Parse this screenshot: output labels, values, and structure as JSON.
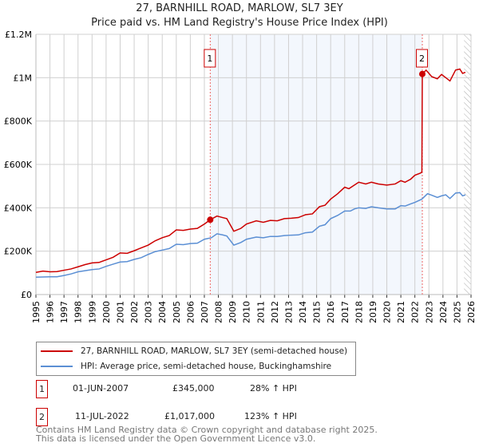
{
  "chart_data": {
    "type": "line",
    "title": "27, BARNHILL ROAD, MARLOW, SL7 3EY",
    "subtitle": "Price paid vs. HM Land Registry's House Price Index (HPI)",
    "xlim": [
      1995,
      2026
    ],
    "ylim": [
      0,
      1200000
    ],
    "yticks": [
      {
        "v": 0,
        "label": "£0"
      },
      {
        "v": 200000,
        "label": "£200K"
      },
      {
        "v": 400000,
        "label": "£400K"
      },
      {
        "v": 600000,
        "label": "£600K"
      },
      {
        "v": 800000,
        "label": "£800K"
      },
      {
        "v": 1000000,
        "label": "£1M"
      },
      {
        "v": 1200000,
        "label": "£1.2M"
      }
    ],
    "xticks": [
      "1995",
      "1996",
      "1997",
      "1998",
      "1999",
      "2000",
      "2001",
      "2002",
      "2003",
      "2004",
      "2005",
      "2006",
      "2007",
      "2008",
      "2009",
      "2010",
      "2011",
      "2012",
      "2013",
      "2014",
      "2015",
      "2016",
      "2017",
      "2018",
      "2019",
      "2020",
      "2021",
      "2022",
      "2023",
      "2024",
      "2025",
      "2026"
    ],
    "grid": true,
    "shaded_period": [
      2007.42,
      2022.53
    ],
    "hatched_after": 2025.5,
    "series": [
      {
        "name": "27, BARNHILL ROAD, MARLOW, SL7 3EY (semi-detached house)",
        "color": "#cc0000",
        "x": [
          1995,
          1995.5,
          1996,
          1996.5,
          1997,
          1997.5,
          1998,
          1998.5,
          1999,
          1999.5,
          2000,
          2000.5,
          2001,
          2001.5,
          2002,
          2002.5,
          2003,
          2003.5,
          2004,
          2004.5,
          2005,
          2005.5,
          2006,
          2006.5,
          2007,
          2007.42,
          2007.9,
          2008.3,
          2008.6,
          2009.1,
          2009.6,
          2010,
          2010.7,
          2011.2,
          2011.7,
          2012.2,
          2012.7,
          2013.2,
          2013.7,
          2014.2,
          2014.7,
          2015.2,
          2015.6,
          2016,
          2016.5,
          2017,
          2017.3,
          2017.7,
          2018,
          2018.5,
          2018.9,
          2019.4,
          2020,
          2020.6,
          2021,
          2021.3,
          2021.7,
          2022,
          2022.4,
          2022.5,
          2022.53,
          2022.8,
          2023.2,
          2023.6,
          2023.9,
          2024.2,
          2024.5,
          2024.9,
          2025.2,
          2025.4,
          2025.6
        ],
        "y": [
          102000,
          108000,
          105000,
          106000,
          112000,
          118000,
          128000,
          138000,
          146000,
          148000,
          160000,
          172000,
          192000,
          190000,
          202000,
          215000,
          228000,
          248000,
          262000,
          272000,
          298000,
          296000,
          302000,
          305000,
          325000,
          345000,
          362000,
          355000,
          350000,
          292000,
          305000,
          325000,
          340000,
          333000,
          342000,
          340000,
          350000,
          352000,
          355000,
          368000,
          372000,
          405000,
          412000,
          440000,
          465000,
          495000,
          488000,
          505000,
          518000,
          510000,
          518000,
          510000,
          505000,
          510000,
          525000,
          518000,
          532000,
          550000,
          560000,
          565000,
          1017000,
          1035000,
          1005000,
          995000,
          1015000,
          1000000,
          985000,
          1035000,
          1040000,
          1020000,
          1025000
        ]
      },
      {
        "name": "HPI: Average price, semi-detached house, Buckinghamshire",
        "color": "#5b8fd4",
        "x": [
          1995,
          1996,
          1996.5,
          1997,
          1997.5,
          1998,
          1998.5,
          1999,
          1999.5,
          2000,
          2000.5,
          2001,
          2001.5,
          2002,
          2002.5,
          2003,
          2003.5,
          2004,
          2004.5,
          2005,
          2005.5,
          2006,
          2006.5,
          2007,
          2007.5,
          2007.9,
          2008.3,
          2008.6,
          2009.1,
          2009.6,
          2010,
          2010.7,
          2011.2,
          2011.7,
          2012.2,
          2012.7,
          2013.2,
          2013.7,
          2014.2,
          2014.7,
          2015.2,
          2015.6,
          2016,
          2016.5,
          2017,
          2017.4,
          2017.7,
          2018,
          2018.5,
          2018.9,
          2019.4,
          2020,
          2020.6,
          2021,
          2021.3,
          2021.7,
          2022,
          2022.5,
          2022.9,
          2023.2,
          2023.6,
          2023.9,
          2024.2,
          2024.5,
          2024.9,
          2025.2,
          2025.4,
          2025.6
        ],
        "y": [
          80000,
          82000,
          82000,
          88000,
          95000,
          105000,
          110000,
          115000,
          118000,
          130000,
          140000,
          150000,
          152000,
          162000,
          170000,
          185000,
          198000,
          205000,
          212000,
          232000,
          230000,
          235000,
          237000,
          255000,
          262000,
          280000,
          275000,
          270000,
          228000,
          240000,
          255000,
          265000,
          262000,
          268000,
          268000,
          272000,
          274000,
          275000,
          285000,
          288000,
          315000,
          322000,
          350000,
          365000,
          385000,
          385000,
          395000,
          400000,
          397000,
          405000,
          400000,
          395000,
          395000,
          410000,
          408000,
          418000,
          425000,
          440000,
          465000,
          458000,
          448000,
          455000,
          460000,
          443000,
          468000,
          470000,
          455000,
          460000
        ]
      }
    ],
    "sales": [
      {
        "label": "1",
        "x": 2007.42,
        "y": 345000,
        "date": "01-JUN-2007",
        "price": "£345,000",
        "hpi": "28% ↑ HPI"
      },
      {
        "label": "2",
        "x": 2022.53,
        "y": 1017000,
        "date": "11-JUL-2022",
        "price": "£1,017,000",
        "hpi": "123% ↑ HPI"
      }
    ]
  },
  "footer": {
    "line1": "Contains HM Land Registry data © Crown copyright and database right 2025.",
    "line2": "This data is licensed under the Open Government Licence v3.0."
  }
}
